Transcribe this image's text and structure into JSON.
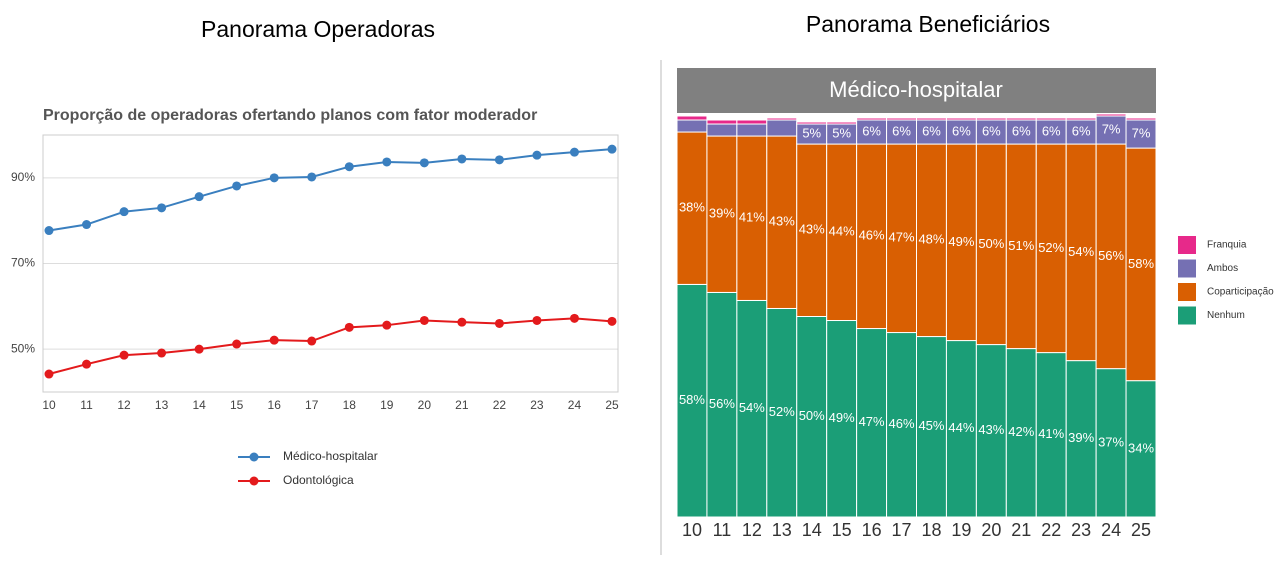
{
  "chart_data": [
    {
      "type": "line",
      "panel_title": "Panorama Operadoras",
      "title": "Proporção de operadoras ofertando planos com fator moderador",
      "categories": [
        "10",
        "11",
        "12",
        "13",
        "14",
        "15",
        "16",
        "17",
        "18",
        "19",
        "20",
        "21",
        "22",
        "23",
        "24",
        "25"
      ],
      "series": [
        {
          "name": "Médico-hospitalar",
          "color": "#3a7fbf",
          "values": [
            77.7,
            79.1,
            82.1,
            83.0,
            85.6,
            88.1,
            90.0,
            90.2,
            92.6,
            93.7,
            93.5,
            94.4,
            94.2,
            95.3,
            96.0,
            96.7
          ]
        },
        {
          "name": "Odontológica",
          "color": "#e31a1c",
          "values": [
            44.2,
            46.5,
            48.6,
            49.1,
            50.0,
            51.2,
            52.1,
            51.9,
            55.1,
            55.6,
            56.7,
            56.3,
            56.0,
            56.7,
            57.2,
            56.5
          ]
        }
      ],
      "ylim": [
        40,
        100
      ],
      "yticks": [
        {
          "value": 50,
          "label": "50%"
        },
        {
          "value": 70,
          "label": "70%"
        },
        {
          "value": 90,
          "label": "90%"
        }
      ],
      "grid": true,
      "legend": "bottom"
    },
    {
      "type": "stacked-bar",
      "panel_title": "Panorama Beneficiários",
      "facet": "Médico-hospitalar",
      "categories": [
        "10",
        "11",
        "12",
        "13",
        "14",
        "15",
        "16",
        "17",
        "18",
        "19",
        "20",
        "21",
        "22",
        "23",
        "24",
        "25"
      ],
      "series": [
        {
          "name": "Nenhum",
          "color": "#1b9e77",
          "values": [
            58,
            56,
            54,
            52,
            50,
            49,
            47,
            46,
            45,
            44,
            43,
            42,
            41,
            39,
            37,
            34
          ],
          "value_labels": [
            "58%",
            "56%",
            "54%",
            "52%",
            "50%",
            "49%",
            "47%",
            "46%",
            "45%",
            "44%",
            "43%",
            "42%",
            "41%",
            "39%",
            "37%",
            "34%"
          ]
        },
        {
          "name": "Coparticipação",
          "color": "#d95f02",
          "values": [
            38,
            39,
            41,
            43,
            43,
            44,
            46,
            47,
            48,
            49,
            50,
            51,
            52,
            54,
            56,
            58
          ],
          "value_labels": [
            "38%",
            "39%",
            "41%",
            "43%",
            "43%",
            "44%",
            "46%",
            "47%",
            "48%",
            "49%",
            "50%",
            "51%",
            "52%",
            "54%",
            "56%",
            "58%"
          ]
        },
        {
          "name": "Ambos",
          "color": "#7570b3",
          "values": [
            3,
            3,
            3,
            4,
            5,
            5,
            6,
            6,
            6,
            6,
            6,
            6,
            6,
            6,
            7,
            7
          ],
          "value_labels": [
            null,
            null,
            null,
            null,
            "5%",
            "5%",
            "6%",
            "6%",
            "6%",
            "6%",
            "6%",
            "6%",
            "6%",
            "6%",
            "7%",
            "7%"
          ]
        },
        {
          "name": "Franquia",
          "color": "#e7298a",
          "values": [
            1,
            1,
            1,
            0.5,
            0.5,
            0.5,
            0.5,
            0.5,
            0.5,
            0.5,
            0.5,
            0.5,
            0.5,
            0.5,
            0.5,
            0.5
          ]
        }
      ],
      "ylim": [
        0,
        100
      ],
      "legend": "right"
    }
  ]
}
